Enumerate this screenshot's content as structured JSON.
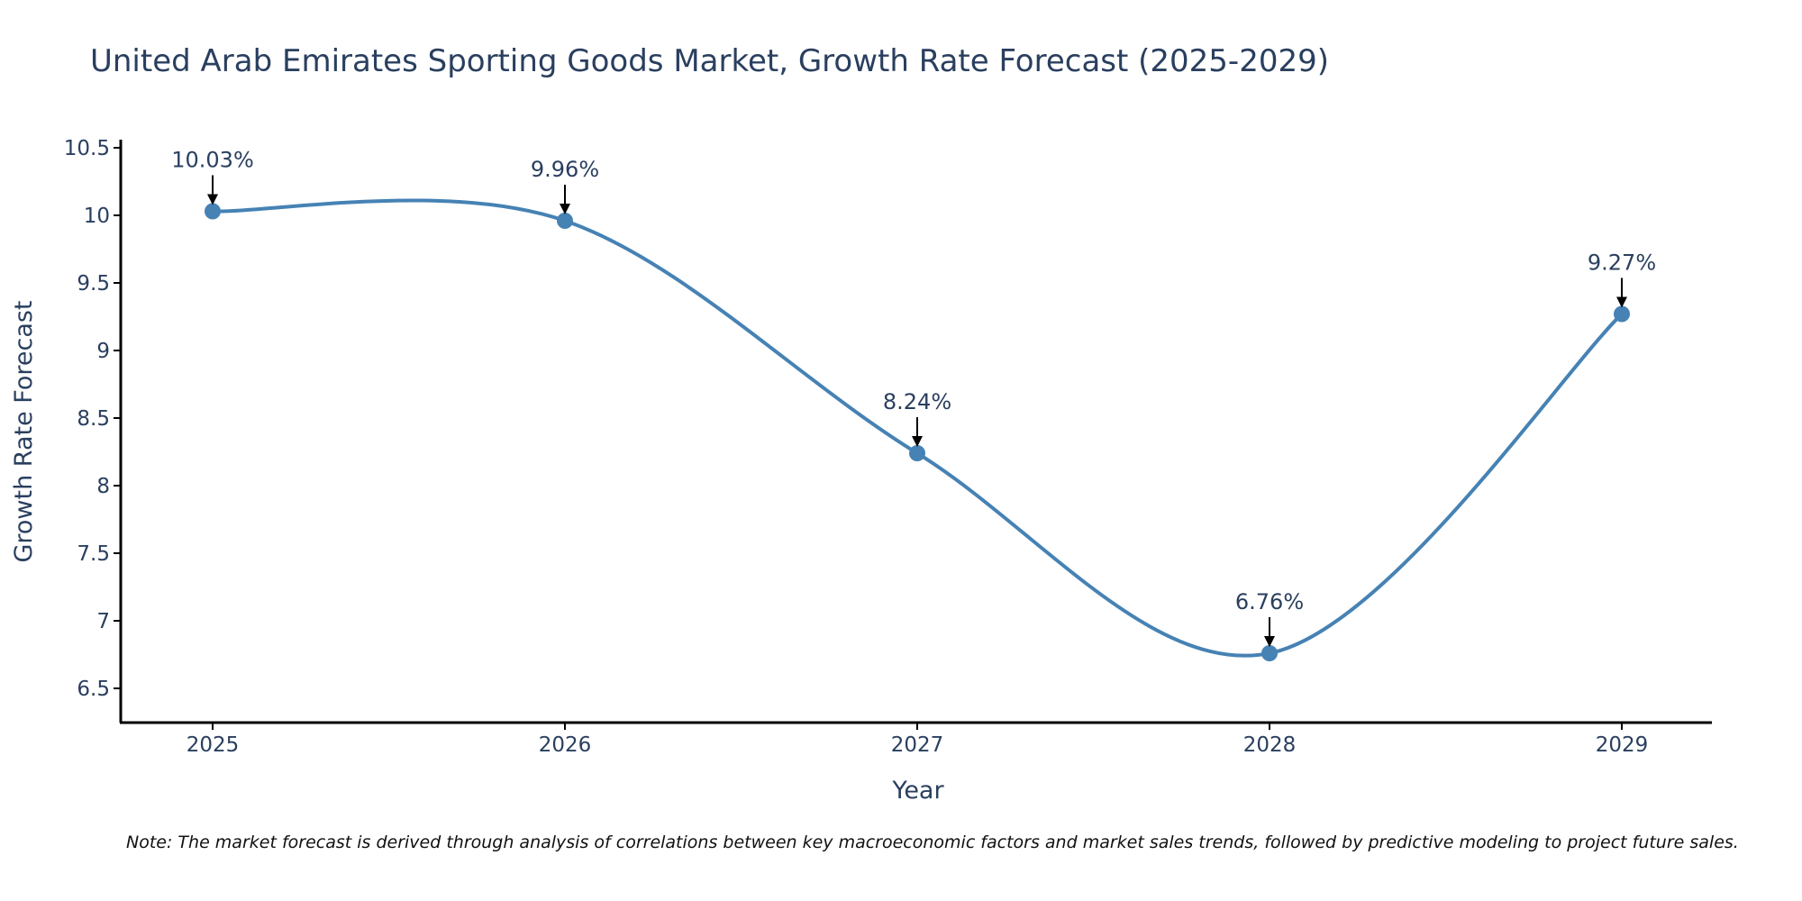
{
  "chart_data": {
    "type": "line",
    "title": "United Arab Emirates Sporting Goods Market, Growth Rate Forecast (2025-2029)",
    "xlabel": "Year",
    "ylabel": "Growth Rate Forecast",
    "categories": [
      "2025",
      "2026",
      "2027",
      "2028",
      "2029"
    ],
    "series": [
      {
        "name": "Growth Rate Forecast",
        "values": [
          10.03,
          9.96,
          8.24,
          6.76,
          9.27
        ]
      }
    ],
    "data_labels": [
      "10.03%",
      "9.96%",
      "8.24%",
      "6.76%",
      "9.27%"
    ],
    "ylim": [
      6.25,
      10.5
    ],
    "yticks": [
      6.5,
      7,
      7.5,
      8,
      8.5,
      9,
      9.5,
      10,
      10.5
    ],
    "ytick_labels": [
      "6.5",
      "7",
      "7.5",
      "8",
      "8.5",
      "9",
      "9.5",
      "10",
      "10.5"
    ],
    "grid": false,
    "line_color": "#4682b4",
    "marker_color": "#4682b4",
    "annotation_arrow_color": "#000000",
    "note": "Note: The market forecast is derived through analysis of correlations between key macroeconomic factors and market sales trends, followed by predictive modeling to project future sales."
  }
}
